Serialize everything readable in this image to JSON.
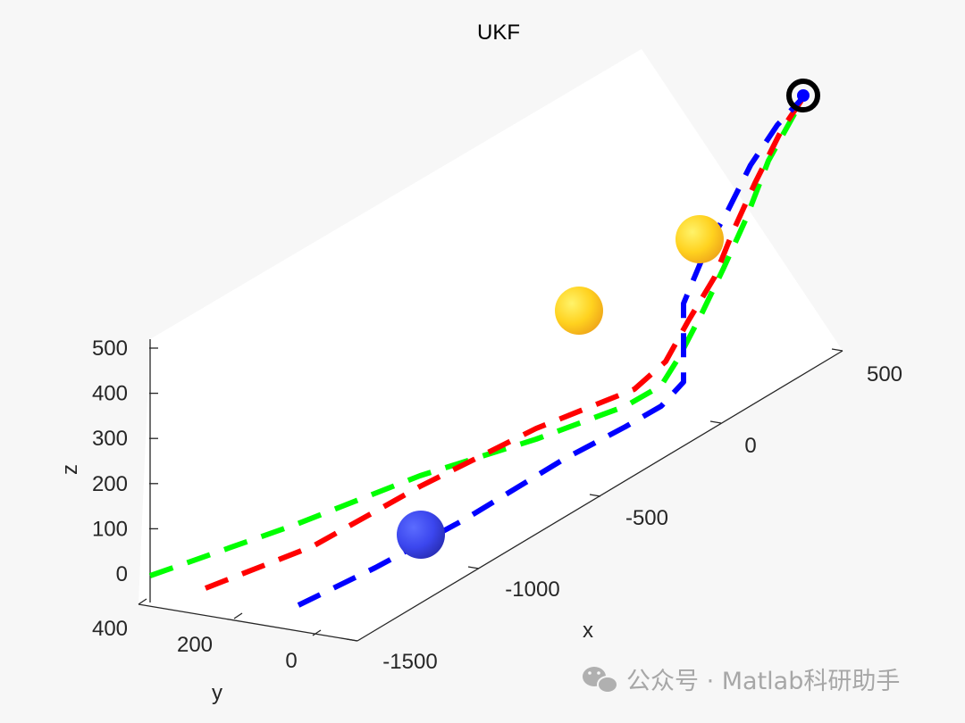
{
  "chart_data": {
    "type": "line3d",
    "title": "UKF",
    "xlabel": "x",
    "ylabel": "y",
    "zlabel": "z",
    "xlim": [
      -1500,
      500
    ],
    "ylim": [
      0,
      400
    ],
    "zlim": [
      0,
      500
    ],
    "x_ticks": [
      "-1500",
      "-1000",
      "-500",
      "0",
      "500"
    ],
    "y_ticks": [
      "0",
      "200",
      "400"
    ],
    "z_ticks": [
      "0",
      "100",
      "200",
      "300",
      "400",
      "500"
    ],
    "grid": false,
    "line_style": "dashed",
    "series": [
      {
        "color": "#00ff00",
        "points": [
          [
            -1500,
            300,
            0
          ],
          [
            -400,
            300,
            320
          ],
          [
            -20,
            300,
            400
          ],
          [
            150,
            260,
            480
          ],
          [
            500,
            170,
            500
          ]
        ]
      },
      {
        "color": "#ff0000",
        "points": [
          [
            -1450,
            200,
            0
          ],
          [
            -450,
            220,
            330
          ],
          [
            -70,
            240,
            390
          ],
          [
            130,
            230,
            480
          ],
          [
            500,
            170,
            500
          ]
        ]
      },
      {
        "color": "#0000ff",
        "points": [
          [
            -1300,
            50,
            0
          ],
          [
            -600,
            90,
            240
          ],
          [
            -100,
            130,
            330
          ],
          [
            100,
            160,
            440
          ],
          [
            500,
            170,
            500
          ]
        ]
      }
    ],
    "markers": [
      {
        "kind": "sphere",
        "color": "#3b46ee",
        "point": [
          -1250,
          90,
          55
        ]
      },
      {
        "kind": "sphere",
        "color": "#ffd21f",
        "point": [
          -380,
          330,
          530
        ]
      },
      {
        "kind": "sphere",
        "color": "#ffd21f",
        "point": [
          60,
          230,
          570
        ]
      },
      {
        "kind": "ring",
        "color": "#000000",
        "point": [
          500,
          170,
          500
        ]
      }
    ]
  },
  "watermark": {
    "text": "公众号 · Matlab科研助手",
    "icon": "wechat-icon"
  }
}
